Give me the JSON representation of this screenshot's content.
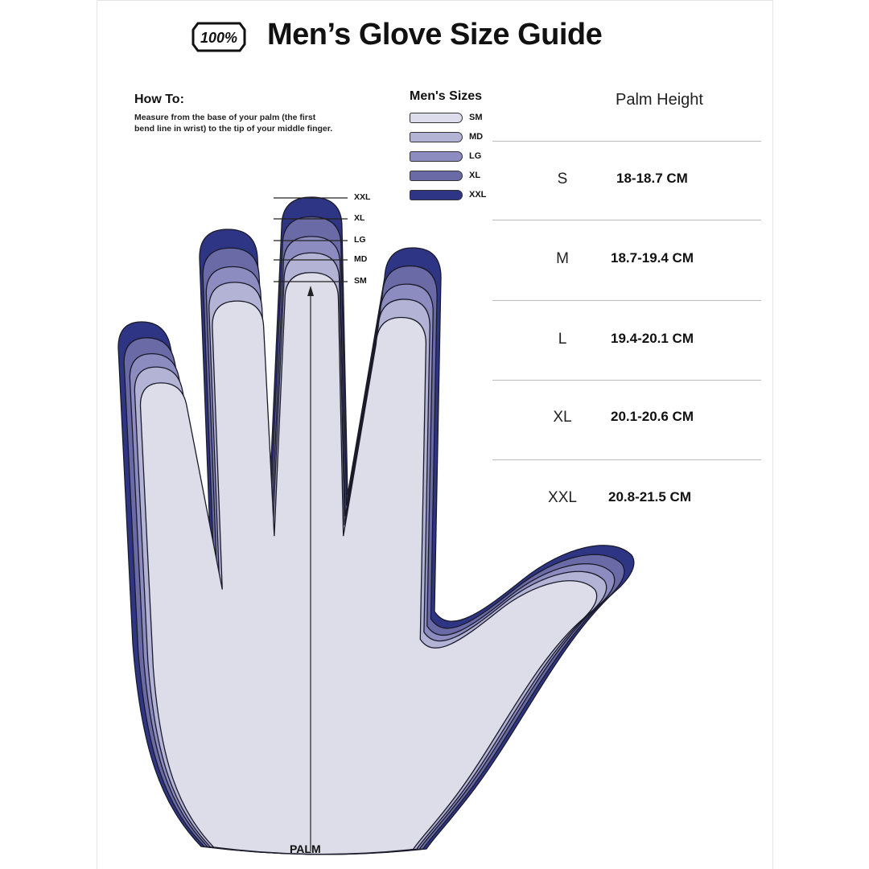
{
  "logo_text": "100%",
  "title": "Men’s Glove Size Guide",
  "how_to": {
    "heading": "How To:",
    "text": "Measure from the base of your palm (the first bend line in wrist) to the tip of your middle finger."
  },
  "legend": {
    "heading": "Men's Sizes",
    "items": [
      {
        "label": "SM",
        "color": "#dcdcec"
      },
      {
        "label": "MD",
        "color": "#b3b3d6"
      },
      {
        "label": "LG",
        "color": "#8c8cc0"
      },
      {
        "label": "XL",
        "color": "#6a6aa6"
      },
      {
        "label": "XXL",
        "color": "#2e3585"
      }
    ]
  },
  "finger_levels": [
    "XXL",
    "XL",
    "LG",
    "MD",
    "SM"
  ],
  "palm_label": "PALM",
  "table": {
    "heading": "Palm Height",
    "rows": [
      {
        "size": "S",
        "value": "18-18.7 CM"
      },
      {
        "size": "M",
        "value": "18.7-19.4 CM"
      },
      {
        "size": "L",
        "value": "19.4-20.1 CM"
      },
      {
        "size": "XL",
        "value": "20.1-20.6 CM"
      },
      {
        "size": "XXL",
        "value": "20.8-21.5 CM"
      }
    ]
  }
}
